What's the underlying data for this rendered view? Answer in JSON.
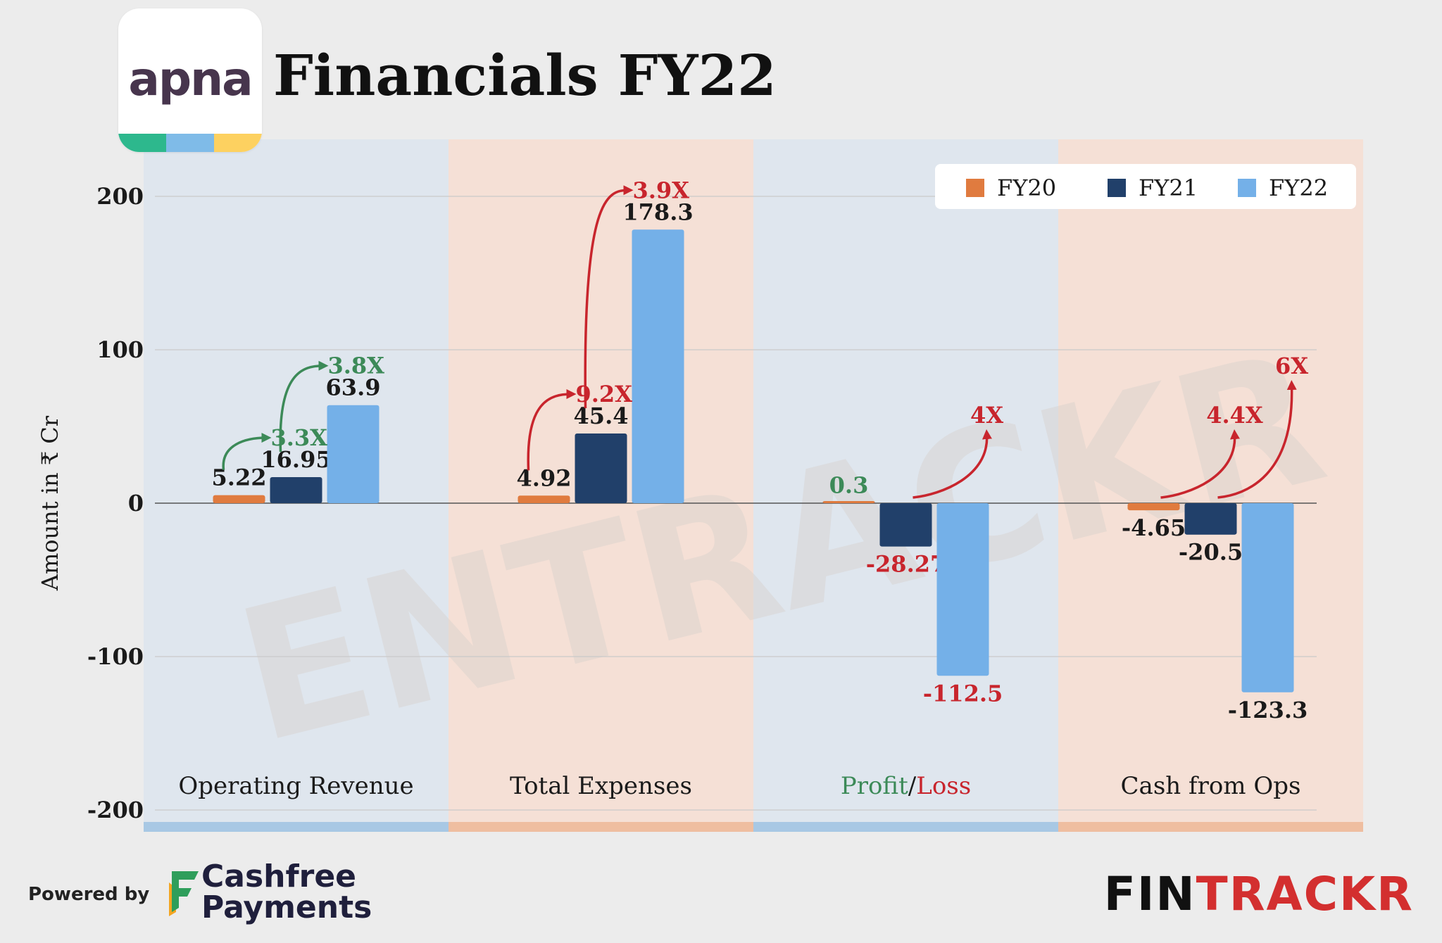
{
  "header": {
    "logo_text": "apna",
    "title": "Financials FY22"
  },
  "footer": {
    "powered_by": "Powered by",
    "sponsor_line1": "Cashfree",
    "sponsor_line2": "Payments",
    "brand_part1": "FIN",
    "brand_part2": "TRACKR",
    "watermark": "ENTRACKR"
  },
  "colors": {
    "fy20": "#e07b3f",
    "fy21": "#21406a",
    "fy22": "#74b0e8",
    "growth_green": "#3c8a58",
    "growth_red": "#c8252d",
    "panel_blue": "#dfe6ee",
    "panel_peach": "#f5e0d6",
    "strip_blue": "#a8c8e4",
    "strip_peach": "#efbea0",
    "logo_green": "#2db88d",
    "logo_blue": "#7fbbe8",
    "logo_yellow": "#fdd160",
    "brand_dark": "#111111",
    "brand_red": "#d32f2f"
  },
  "chart_data": {
    "type": "bar",
    "ylabel": "Amount in ₹ Cr",
    "ylim": [
      -200,
      200
    ],
    "yticks": [
      -200,
      -100,
      0,
      100,
      200
    ],
    "grid": true,
    "legend_position": "top-right",
    "categories": [
      "Operating Revenue",
      "Total Expenses",
      "Profit/Loss",
      "Cash from Ops"
    ],
    "category_label_parts": [
      [
        {
          "text": "Operating Revenue",
          "tone": "dark"
        }
      ],
      [
        {
          "text": "Total Expenses",
          "tone": "dark"
        }
      ],
      [
        {
          "text": "Profit",
          "tone": "green"
        },
        {
          "text": "/",
          "tone": "dark"
        },
        {
          "text": "Loss",
          "tone": "red"
        }
      ],
      [
        {
          "text": "Cash from Ops",
          "tone": "dark"
        }
      ]
    ],
    "series": [
      {
        "name": "FY20",
        "values": [
          5.22,
          4.92,
          0.3,
          -4.65
        ]
      },
      {
        "name": "FY21",
        "values": [
          16.95,
          45.4,
          -28.27,
          -20.5
        ]
      },
      {
        "name": "FY22",
        "values": [
          63.9,
          178.3,
          -112.5,
          -123.3
        ]
      }
    ],
    "value_labels": [
      [
        "5.22",
        "4.92",
        "0.3",
        "-4.65"
      ],
      [
        "16.95",
        "45.4",
        "-28.27",
        "-20.5"
      ],
      [
        "63.9",
        "178.3",
        "-112.5",
        "-123.3"
      ]
    ],
    "value_label_tones": [
      [
        "dark",
        "dark",
        "green",
        "dark"
      ],
      [
        "dark",
        "dark",
        "red",
        "dark"
      ],
      [
        "dark",
        "dark",
        "red",
        "dark"
      ]
    ],
    "growth_annotations": [
      {
        "category": 0,
        "from": "FY20",
        "to": "FY21",
        "label": "3.3X",
        "tone": "green"
      },
      {
        "category": 0,
        "from": "FY21",
        "to": "FY22",
        "label": "3.8X",
        "tone": "green"
      },
      {
        "category": 1,
        "from": "FY20",
        "to": "FY21",
        "label": "9.2X",
        "tone": "red"
      },
      {
        "category": 1,
        "from": "FY21",
        "to": "FY22",
        "label": "3.9X",
        "tone": "red"
      },
      {
        "category": 2,
        "from": "FY21",
        "to": "FY22",
        "label": "4X",
        "tone": "red"
      },
      {
        "category": 3,
        "from": "FY20",
        "to": "FY21",
        "label": "4.4X",
        "tone": "red"
      },
      {
        "category": 3,
        "from": "FY21",
        "to": "FY22",
        "label": "6X",
        "tone": "red"
      }
    ]
  }
}
